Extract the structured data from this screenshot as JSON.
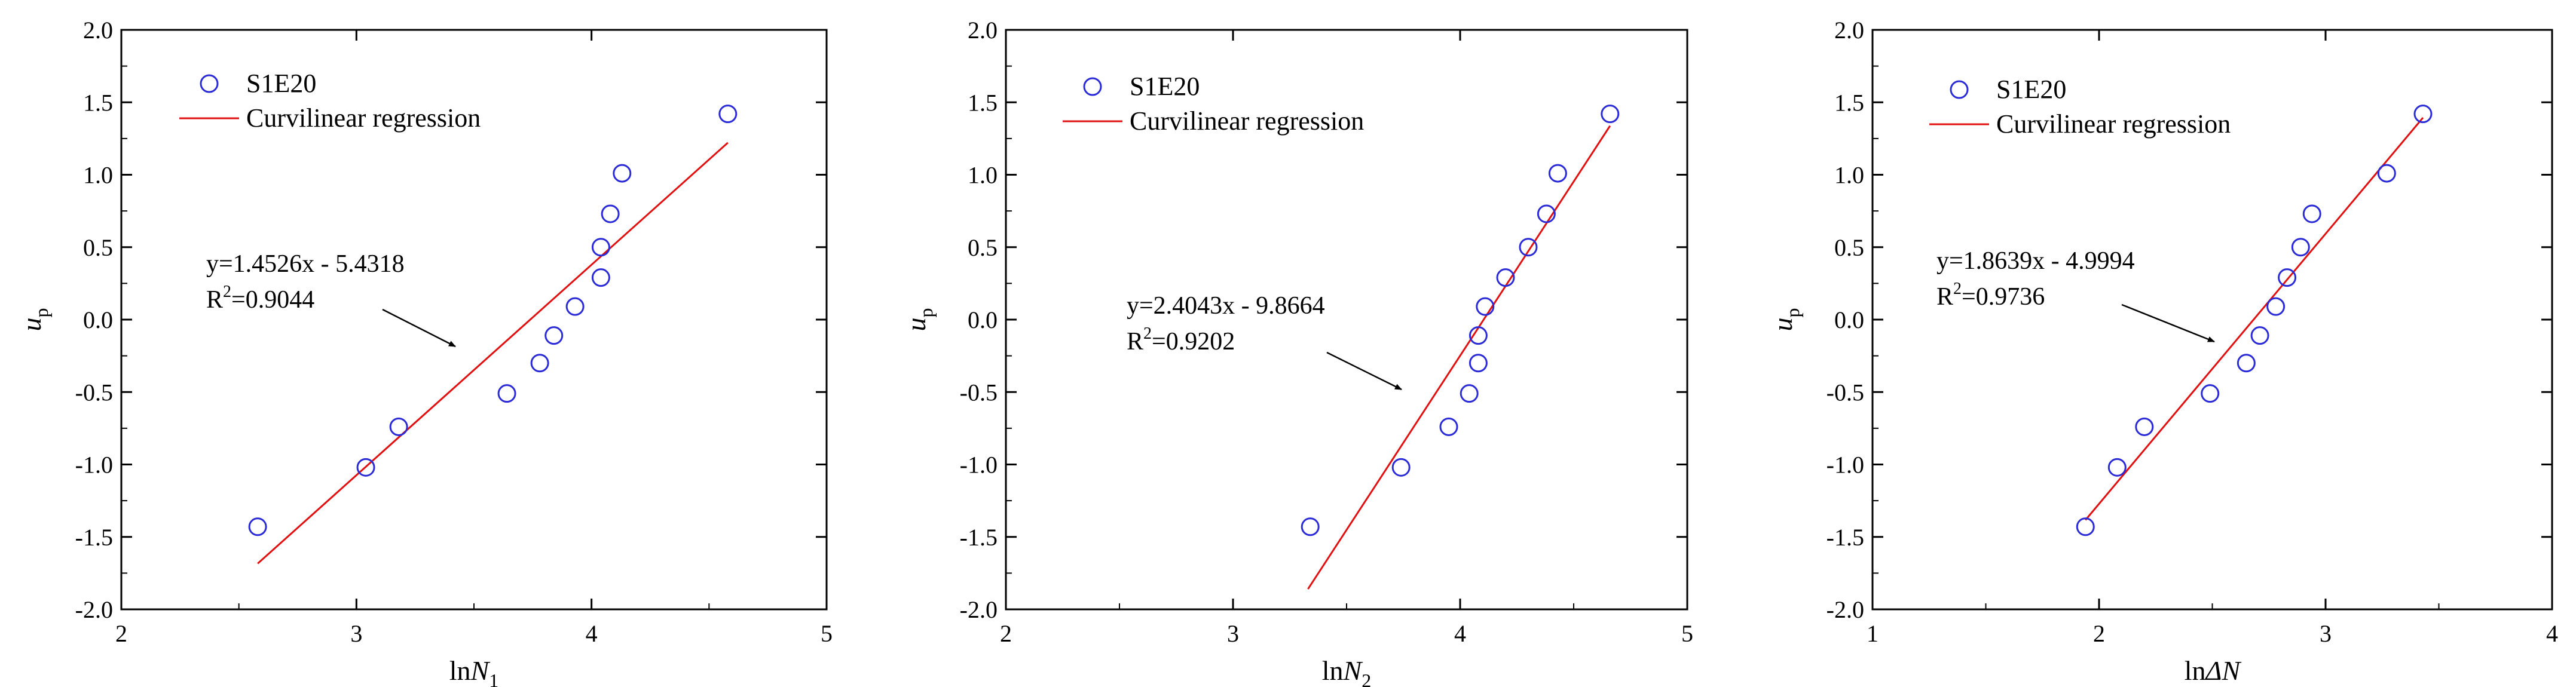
{
  "colors": {
    "points": "#2a2ad6",
    "fit": "#e01010",
    "axis": "#000000"
  },
  "chart_data": [
    {
      "type": "scatter",
      "xlabel": {
        "main": "ln",
        "italic": "N",
        "sub": "1"
      },
      "ylabel": {
        "italic": "u",
        "sub": "p"
      },
      "xlim": [
        2,
        5
      ],
      "ylim": [
        -2.0,
        2.0
      ],
      "xticks": [
        2,
        3,
        4,
        5
      ],
      "xtick_labels": [
        "2",
        "3",
        "4",
        "5"
      ],
      "yticks": [
        -2.0,
        -1.5,
        -1.0,
        -0.5,
        0.0,
        0.5,
        1.0,
        1.5,
        2.0
      ],
      "ytick_labels": [
        "-2.0",
        "-1.5",
        "-1.0",
        "-0.5",
        "0.0",
        "0.5",
        "1.0",
        "1.5",
        "2.0"
      ],
      "legend": {
        "series": "S1E20",
        "fit": "Curvilinear regression"
      },
      "series": [
        {
          "name": "S1E20",
          "x": [
            2.58,
            3.04,
            3.18,
            3.64,
            3.78,
            3.84,
            3.93,
            4.04,
            4.04,
            4.08,
            4.13,
            4.58
          ],
          "y": [
            -1.43,
            -1.02,
            -0.74,
            -0.51,
            -0.3,
            -0.11,
            0.09,
            0.29,
            0.5,
            0.73,
            1.01,
            1.42
          ]
        }
      ],
      "fit": {
        "slope": 1.4526,
        "intercept": -5.4318,
        "x_range": [
          2.58,
          4.58
        ]
      },
      "equation": "y=1.4526x - 5.4318",
      "r2": {
        "prefix": "R",
        "sup": "2",
        "value": "=0.9044"
      }
    },
    {
      "type": "scatter",
      "xlabel": {
        "main": "ln",
        "italic": "N",
        "sub": "2"
      },
      "ylabel": {
        "italic": "u",
        "sub": "p"
      },
      "xlim": [
        2,
        5
      ],
      "ylim": [
        -2.0,
        2.0
      ],
      "xticks": [
        2,
        3,
        4,
        5
      ],
      "xtick_labels": [
        "2",
        "3",
        "4",
        "5"
      ],
      "yticks": [
        -2.0,
        -1.5,
        -1.0,
        -0.5,
        0.0,
        0.5,
        1.0,
        1.5,
        2.0
      ],
      "ytick_labels": [
        "-2.0",
        "-1.5",
        "-1.0",
        "-0.5",
        "0.0",
        "0.5",
        "1.0",
        "1.5",
        "2.0"
      ],
      "legend": {
        "series": "S1E20",
        "fit": "Curvilinear regression"
      },
      "series": [
        {
          "name": "S1E20",
          "x": [
            3.34,
            3.74,
            3.95,
            4.04,
            4.08,
            4.08,
            4.11,
            4.2,
            4.3,
            4.38,
            4.43,
            4.66
          ],
          "y": [
            -1.43,
            -1.02,
            -0.74,
            -0.51,
            -0.3,
            -0.11,
            0.09,
            0.29,
            0.5,
            0.73,
            1.01,
            1.42
          ]
        }
      ],
      "fit": {
        "slope": 2.4043,
        "intercept": -9.8664,
        "x_range": [
          3.33,
          4.66
        ]
      },
      "equation": "y=2.4043x - 9.8664",
      "r2": {
        "prefix": "R",
        "sup": "2",
        "value": "=0.9202"
      }
    },
    {
      "type": "scatter",
      "xlabel": {
        "main": "ln",
        "italic": "ΔN",
        "sub": ""
      },
      "ylabel": {
        "italic": "u",
        "sub": "p"
      },
      "xlim": [
        1,
        4
      ],
      "ylim": [
        -2.0,
        2.0
      ],
      "xticks": [
        1,
        2,
        3,
        4
      ],
      "xtick_labels": [
        "1",
        "2",
        "3",
        "4"
      ],
      "yticks": [
        -2.0,
        -1.5,
        -1.0,
        -0.5,
        0.0,
        0.5,
        1.0,
        1.5,
        2.0
      ],
      "ytick_labels": [
        "-2.0",
        "-1.5",
        "-1.0",
        "-0.5",
        "0.0",
        "0.5",
        "1.0",
        "1.5",
        "2.0"
      ],
      "legend": {
        "series": "S1E20",
        "fit": "Curvilinear regression"
      },
      "series": [
        {
          "name": "S1E20",
          "x": [
            1.94,
            2.08,
            2.2,
            2.49,
            2.65,
            2.71,
            2.78,
            2.83,
            2.89,
            2.94,
            3.27,
            3.43
          ],
          "y": [
            -1.43,
            -1.02,
            -0.74,
            -0.51,
            -0.3,
            -0.11,
            0.09,
            0.29,
            0.5,
            0.73,
            1.01,
            1.42
          ]
        }
      ],
      "fit": {
        "slope": 1.8639,
        "intercept": -4.9994,
        "x_range": [
          1.94,
          3.43
        ]
      },
      "equation": "y=1.8639x - 4.9994",
      "r2": {
        "prefix": "R",
        "sup": "2",
        "value": "=0.9736"
      }
    }
  ]
}
